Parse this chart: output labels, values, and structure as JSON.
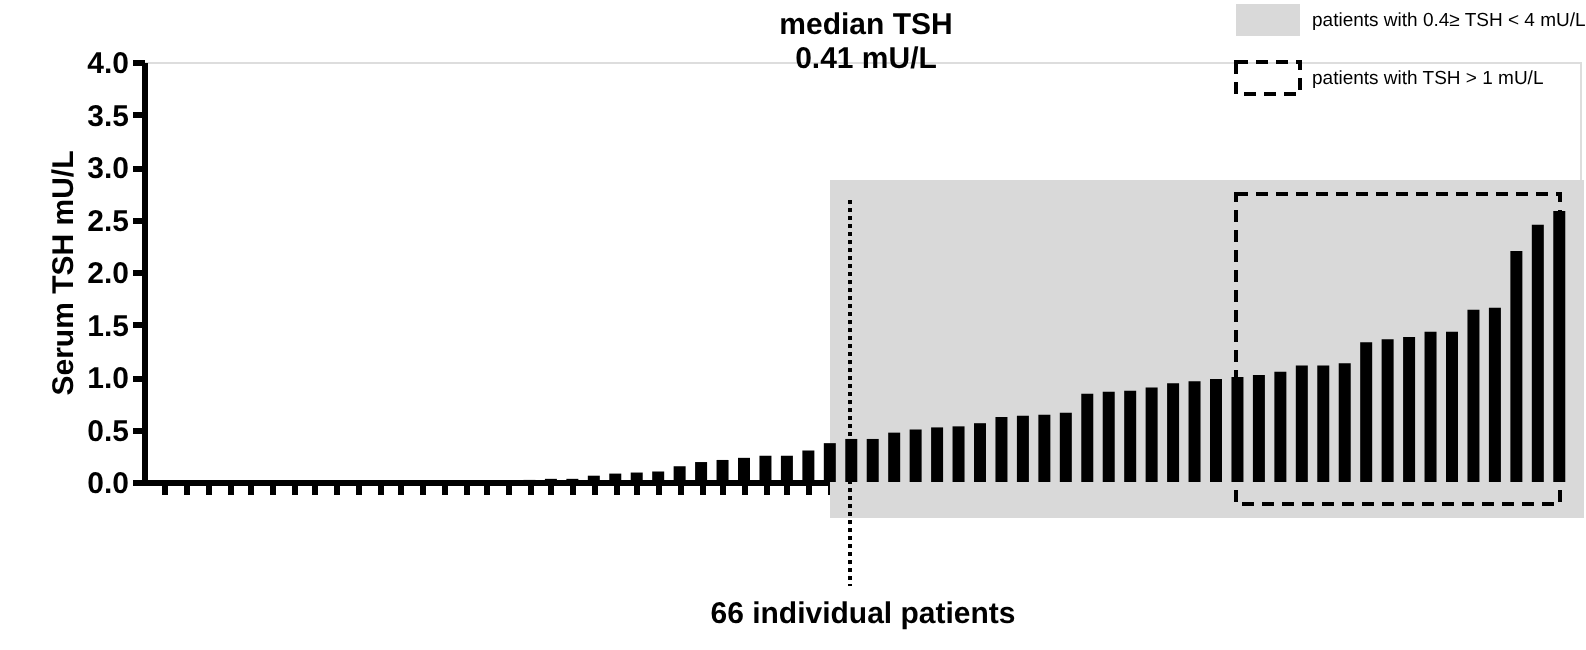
{
  "chart_data": {
    "type": "bar",
    "ylabel": "Serum TSH mU/L",
    "xlabel": "66 individual patients",
    "categories": [
      null,
      null,
      null,
      null,
      null,
      null,
      null,
      null,
      null,
      null,
      null,
      null,
      null,
      null,
      null,
      null,
      null,
      null,
      null,
      null,
      null,
      null,
      null,
      null,
      null,
      null,
      null,
      null,
      null,
      null,
      null,
      null,
      null,
      null,
      null,
      null,
      null,
      null,
      null,
      null,
      null,
      null,
      null,
      null,
      null,
      null,
      null,
      null,
      null,
      null,
      null,
      null,
      null,
      null,
      null,
      null,
      null,
      null,
      null,
      null,
      null,
      null,
      null,
      null,
      null,
      null
    ],
    "values": [
      0,
      0,
      0,
      0,
      0,
      0,
      0,
      0,
      0,
      0,
      0,
      0,
      0,
      0,
      0,
      0,
      0,
      0.02,
      0.03,
      0.03,
      0.06,
      0.08,
      0.09,
      0.1,
      0.15,
      0.19,
      0.21,
      0.23,
      0.25,
      0.25,
      0.3,
      0.37,
      0.41,
      0.41,
      0.47,
      0.5,
      0.52,
      0.53,
      0.56,
      0.62,
      0.63,
      0.64,
      0.66,
      0.84,
      0.86,
      0.87,
      0.9,
      0.94,
      0.96,
      0.98,
      1.0,
      1.02,
      1.05,
      1.11,
      1.11,
      1.13,
      1.33,
      1.36,
      1.38,
      1.43,
      1.43,
      1.64,
      1.66,
      2.2,
      2.45,
      2.58
    ],
    "color": "#000000",
    "ylim": [
      0,
      4
    ],
    "yticks": [
      {
        "value": 0,
        "label": "0.0"
      },
      {
        "value": 0.5,
        "label": "0.5"
      },
      {
        "value": 1,
        "label": "1.0"
      },
      {
        "value": 1.5,
        "label": "1.5"
      },
      {
        "value": 2,
        "label": "2.0"
      },
      {
        "value": 2.5,
        "label": "2.5"
      },
      {
        "value": 3,
        "label": "3.0"
      },
      {
        "value": 3.5,
        "label": "3.5"
      },
      {
        "value": 4,
        "label": "4.0"
      }
    ],
    "grid": false,
    "annotations": [
      "median TSH\n0.41 mU/L",
      "patients with 0.4≥ TSH < 4 mU/L",
      "patients with TSH > 1 mU/L"
    ]
  }
}
